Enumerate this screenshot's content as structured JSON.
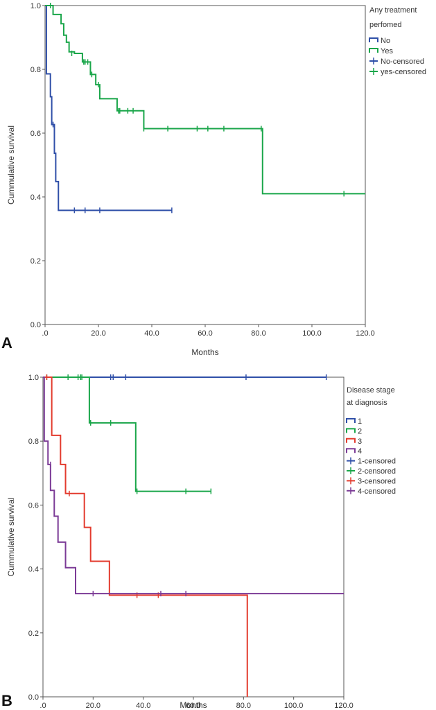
{
  "chart_data": [
    {
      "panel_label": "A",
      "type": "line",
      "subtype": "kaplan-meier-step",
      "xlabel": "Months",
      "ylabel": "Cummulative survival",
      "xlim": [
        0,
        120
      ],
      "ylim": [
        0,
        1
      ],
      "xticks": [
        ".0",
        "20.0",
        "40.0",
        "60.0",
        "80.0",
        "100.0",
        "120.0"
      ],
      "yticks": [
        "0.0",
        "0.2",
        "0.4",
        "0.6",
        "0.8",
        "1.0"
      ],
      "grid": false,
      "legend_position": "top-right",
      "legend_title": [
        "Any treatment",
        "perfomed"
      ],
      "legend": [
        "No",
        "Yes",
        "No-censored",
        "yes-censored"
      ],
      "series": [
        {
          "name": "No",
          "color": "#2f4fa8",
          "steps": [
            [
              0,
              1.0
            ],
            [
              0.5,
              0.786
            ],
            [
              2,
              0.714
            ],
            [
              2.5,
              0.627
            ],
            [
              3.5,
              0.537
            ],
            [
              4,
              0.448
            ],
            [
              5,
              0.358
            ],
            [
              47.5,
              0.358
            ]
          ],
          "censored": [
            [
              3,
              0.627
            ],
            [
              11,
              0.358
            ],
            [
              15,
              0.358
            ],
            [
              20.5,
              0.358
            ],
            [
              47.5,
              0.358
            ]
          ]
        },
        {
          "name": "Yes",
          "color": "#1aa64a",
          "steps": [
            [
              0,
              1.0
            ],
            [
              3,
              0.972
            ],
            [
              6,
              0.943
            ],
            [
              7,
              0.907
            ],
            [
              8,
              0.885
            ],
            [
              9,
              0.855
            ],
            [
              11,
              0.85
            ],
            [
              14,
              0.823
            ],
            [
              17,
              0.784
            ],
            [
              19,
              0.752
            ],
            [
              20.5,
              0.708
            ],
            [
              27,
              0.67
            ],
            [
              37,
              0.614
            ],
            [
              81,
              0.614
            ],
            [
              81.5,
              0.41
            ],
            [
              120,
              0.41
            ]
          ],
          "censored": [
            [
              2,
              1.0
            ],
            [
              10,
              0.85
            ],
            [
              14.5,
              0.823
            ],
            [
              15,
              0.823
            ],
            [
              16,
              0.823
            ],
            [
              17.5,
              0.784
            ],
            [
              20,
              0.752
            ],
            [
              27.5,
              0.67
            ],
            [
              28,
              0.67
            ],
            [
              31,
              0.67
            ],
            [
              33,
              0.67
            ],
            [
              37,
              0.614
            ],
            [
              46,
              0.614
            ],
            [
              57,
              0.614
            ],
            [
              61,
              0.614
            ],
            [
              67,
              0.614
            ],
            [
              81,
              0.614
            ],
            [
              112,
              0.41
            ]
          ]
        }
      ]
    },
    {
      "panel_label": "B",
      "type": "line",
      "subtype": "kaplan-meier-step",
      "xlabel": "Months",
      "ylabel": "Cummulative survival",
      "xlim": [
        0,
        120
      ],
      "ylim": [
        0,
        1
      ],
      "xticks": [
        ".0",
        "20.0",
        "40.0",
        "60.0",
        "80.0",
        "100.0",
        "120.0"
      ],
      "yticks": [
        "0.0",
        "0.2",
        "0.4",
        "0.6",
        "0.8",
        "1.0"
      ],
      "grid": false,
      "legend_position": "top-right",
      "legend_title": [
        "Disease stage",
        "at diagnosis"
      ],
      "legend": [
        "1",
        "2",
        "3",
        "4",
        "1-censored",
        "2-censored",
        "3-censored",
        "4-censored"
      ],
      "series": [
        {
          "name": "1",
          "color": "#2f4fa8",
          "steps": [
            [
              0,
              1.0
            ],
            [
              113,
              1.0
            ]
          ],
          "censored": [
            [
              27,
              1.0
            ],
            [
              28,
              1.0
            ],
            [
              33,
              1.0
            ],
            [
              81,
              1.0
            ],
            [
              113,
              1.0
            ]
          ]
        },
        {
          "name": "2",
          "color": "#1aa64a",
          "steps": [
            [
              0,
              1.0
            ],
            [
              18.5,
              1.0
            ],
            [
              18.5,
              0.857
            ],
            [
              37,
              0.857
            ],
            [
              37,
              0.643
            ],
            [
              67,
              0.643
            ]
          ],
          "censored": [
            [
              1.5,
              1.0
            ],
            [
              10,
              1.0
            ],
            [
              14,
              1.0
            ],
            [
              15,
              1.0
            ],
            [
              15.5,
              1.0
            ],
            [
              19,
              0.857
            ],
            [
              27,
              0.857
            ],
            [
              37.5,
              0.643
            ],
            [
              57,
              0.643
            ],
            [
              67,
              0.643
            ]
          ]
        },
        {
          "name": "3",
          "color": "#e33b2e",
          "steps": [
            [
              0,
              1.0
            ],
            [
              3.5,
              1.0
            ],
            [
              3.5,
              0.818
            ],
            [
              7,
              0.818
            ],
            [
              7,
              0.727
            ],
            [
              9,
              0.727
            ],
            [
              9,
              0.636
            ],
            [
              16.5,
              0.636
            ],
            [
              16.5,
              0.53
            ],
            [
              19,
              0.53
            ],
            [
              19,
              0.424
            ],
            [
              26.5,
              0.424
            ],
            [
              26.5,
              0.318
            ],
            [
              81.5,
              0.318
            ],
            [
              81.5,
              0.0
            ]
          ],
          "censored": [
            [
              1.5,
              1.0
            ],
            [
              10.5,
              0.636
            ],
            [
              37.5,
              0.318
            ],
            [
              46,
              0.318
            ]
          ]
        },
        {
          "name": "4",
          "color": "#7b3a96",
          "steps": [
            [
              0,
              1.0
            ],
            [
              0.5,
              1.0
            ],
            [
              0.5,
              0.8
            ],
            [
              2,
              0.8
            ],
            [
              2,
              0.727
            ],
            [
              3,
              0.727
            ],
            [
              3,
              0.646
            ],
            [
              4.5,
              0.646
            ],
            [
              4.5,
              0.565
            ],
            [
              6,
              0.565
            ],
            [
              6,
              0.484
            ],
            [
              9,
              0.484
            ],
            [
              9,
              0.404
            ],
            [
              13,
              0.404
            ],
            [
              13,
              0.323
            ],
            [
              120,
              0.323
            ]
          ],
          "censored": [
            [
              3,
              0.727
            ],
            [
              20,
              0.323
            ],
            [
              47,
              0.323
            ],
            [
              57,
              0.323
            ]
          ]
        }
      ]
    }
  ]
}
